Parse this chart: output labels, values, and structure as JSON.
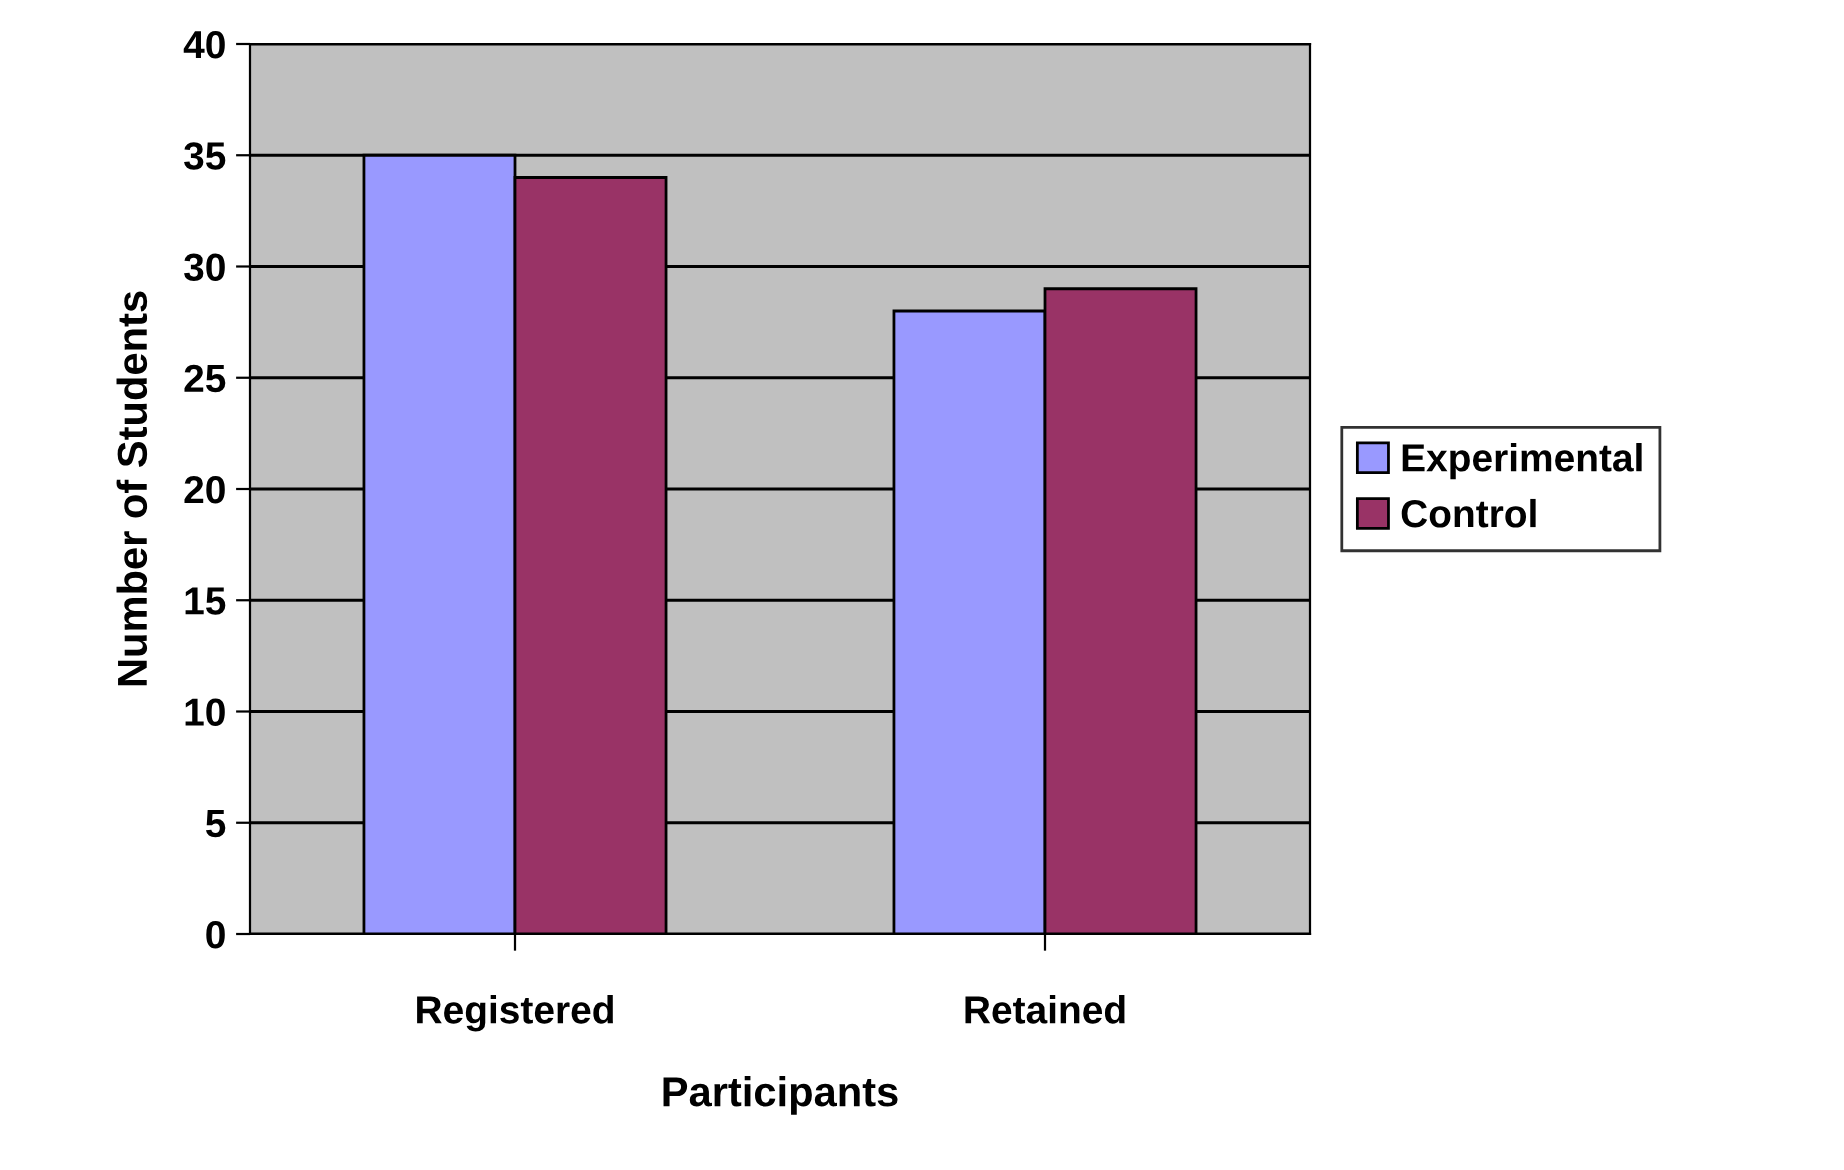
{
  "chart_data": {
    "type": "bar",
    "xlabel": "Participants",
    "ylabel": "Number of Students",
    "categories": [
      "Registered",
      "Retained"
    ],
    "series": [
      {
        "name": "Experimental",
        "color": "#9999ff",
        "values": [
          35,
          28
        ]
      },
      {
        "name": "Control",
        "color": "#993366",
        "values": [
          34,
          29
        ]
      }
    ],
    "ylim": [
      0,
      40
    ],
    "yticks": [
      0,
      5,
      10,
      15,
      20,
      25,
      30,
      35,
      40
    ],
    "grid": "y",
    "legend": "right"
  }
}
